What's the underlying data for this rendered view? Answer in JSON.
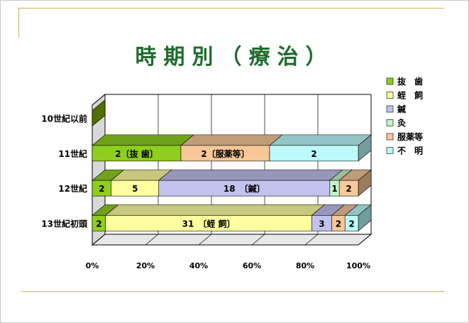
{
  "chart_data": {
    "type": "bar",
    "orientation": "horizontal",
    "stacked": "percent",
    "title": "時期別（療治）",
    "xlim": [
      0,
      100
    ],
    "x_ticks": [
      "0%",
      "20%",
      "40%",
      "60%",
      "80%",
      "100%"
    ],
    "grid": true,
    "legend_position": "right",
    "categories": [
      "13世紀初頭",
      "12世紀",
      "11世紀",
      "10世紀以前"
    ],
    "series": [
      {
        "name": "抜　歯",
        "color": "#8fce1f",
        "values": [
          2,
          2,
          2,
          0
        ],
        "labels": [
          "2",
          "2",
          "2〔抜 歯〕",
          ""
        ]
      },
      {
        "name": "蛭　飼",
        "color": "#ffffa0",
        "values": [
          31,
          5,
          0,
          0
        ],
        "labels": [
          "31　〔蛭 飼〕",
          "5",
          "",
          ""
        ]
      },
      {
        "name": "鍼　",
        "color": "#c2c2ee",
        "values": [
          3,
          18,
          0,
          0
        ],
        "labels": [
          "3",
          "18　〔鍼〕",
          "",
          ""
        ]
      },
      {
        "name": "灸　",
        "color": "#c5f2c5",
        "values": [
          0,
          1,
          0,
          0
        ],
        "labels": [
          "",
          "1",
          "",
          ""
        ]
      },
      {
        "name": "服薬等",
        "color": "#f8c89a",
        "values": [
          2,
          2,
          2,
          0
        ],
        "labels": [
          "2",
          "2",
          "2〔服薬等〕",
          ""
        ]
      },
      {
        "name": "不　明",
        "color": "#bdfbfb",
        "values": [
          2,
          0,
          2,
          0
        ],
        "labels": [
          "2",
          "",
          "2",
          ""
        ]
      }
    ]
  }
}
